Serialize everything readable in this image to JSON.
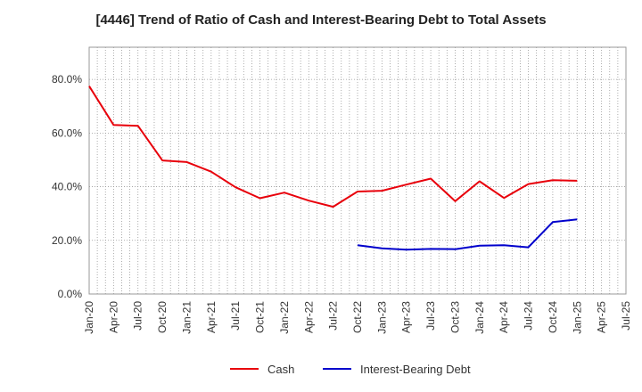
{
  "chart_data": {
    "type": "line",
    "title": "[4446]  Trend of Ratio of Cash and Interest-Bearing Debt to Total Assets",
    "xlabel": "",
    "ylabel": "",
    "x_ticks": [
      "Jan-20",
      "Apr-20",
      "Jul-20",
      "Oct-20",
      "Jan-21",
      "Apr-21",
      "Jul-21",
      "Oct-21",
      "Jan-22",
      "Apr-22",
      "Jul-22",
      "Oct-22",
      "Jan-23",
      "Apr-23",
      "Jul-23",
      "Oct-23",
      "Jan-24",
      "Apr-24",
      "Jul-24",
      "Oct-24",
      "Jan-25",
      "Apr-25",
      "Jul-25"
    ],
    "y_ticks": [
      "0.0%",
      "20.0%",
      "40.0%",
      "60.0%",
      "80.0%"
    ],
    "ylim": [
      0,
      80
    ],
    "grid": true,
    "legend_position": "bottom",
    "series": [
      {
        "name": "Cash",
        "color": "#e8000b",
        "points": [
          [
            "Jan-20",
            77.5
          ],
          [
            "Apr-20",
            63.0
          ],
          [
            "Jul-20",
            62.7
          ],
          [
            "Oct-20",
            49.8
          ],
          [
            "Jan-21",
            49.2
          ],
          [
            "Apr-21",
            45.6
          ],
          [
            "Jul-21",
            39.8
          ],
          [
            "Oct-21",
            35.7
          ],
          [
            "Jan-22",
            37.8
          ],
          [
            "Apr-22",
            34.8
          ],
          [
            "Jul-22",
            32.5
          ],
          [
            "Oct-22",
            38.2
          ],
          [
            "Jan-23",
            38.5
          ],
          [
            "Apr-23",
            40.8
          ],
          [
            "Jul-23",
            43.0
          ],
          [
            "Oct-23",
            34.6
          ],
          [
            "Jan-24",
            42.0
          ],
          [
            "Apr-24",
            35.8
          ],
          [
            "Jul-24",
            41.0
          ],
          [
            "Oct-24",
            42.4
          ],
          [
            "Jan-25",
            42.2
          ]
        ]
      },
      {
        "name": "Interest-Bearing Debt",
        "color": "#0000cc",
        "points": [
          [
            "Oct-22",
            18.2
          ],
          [
            "Jan-23",
            17.0
          ],
          [
            "Apr-23",
            16.5
          ],
          [
            "Jul-23",
            16.8
          ],
          [
            "Oct-23",
            16.7
          ],
          [
            "Jan-24",
            18.0
          ],
          [
            "Apr-24",
            18.2
          ],
          [
            "Jul-24",
            17.4
          ],
          [
            "Oct-24",
            26.8
          ],
          [
            "Jan-25",
            27.8
          ]
        ]
      }
    ]
  }
}
